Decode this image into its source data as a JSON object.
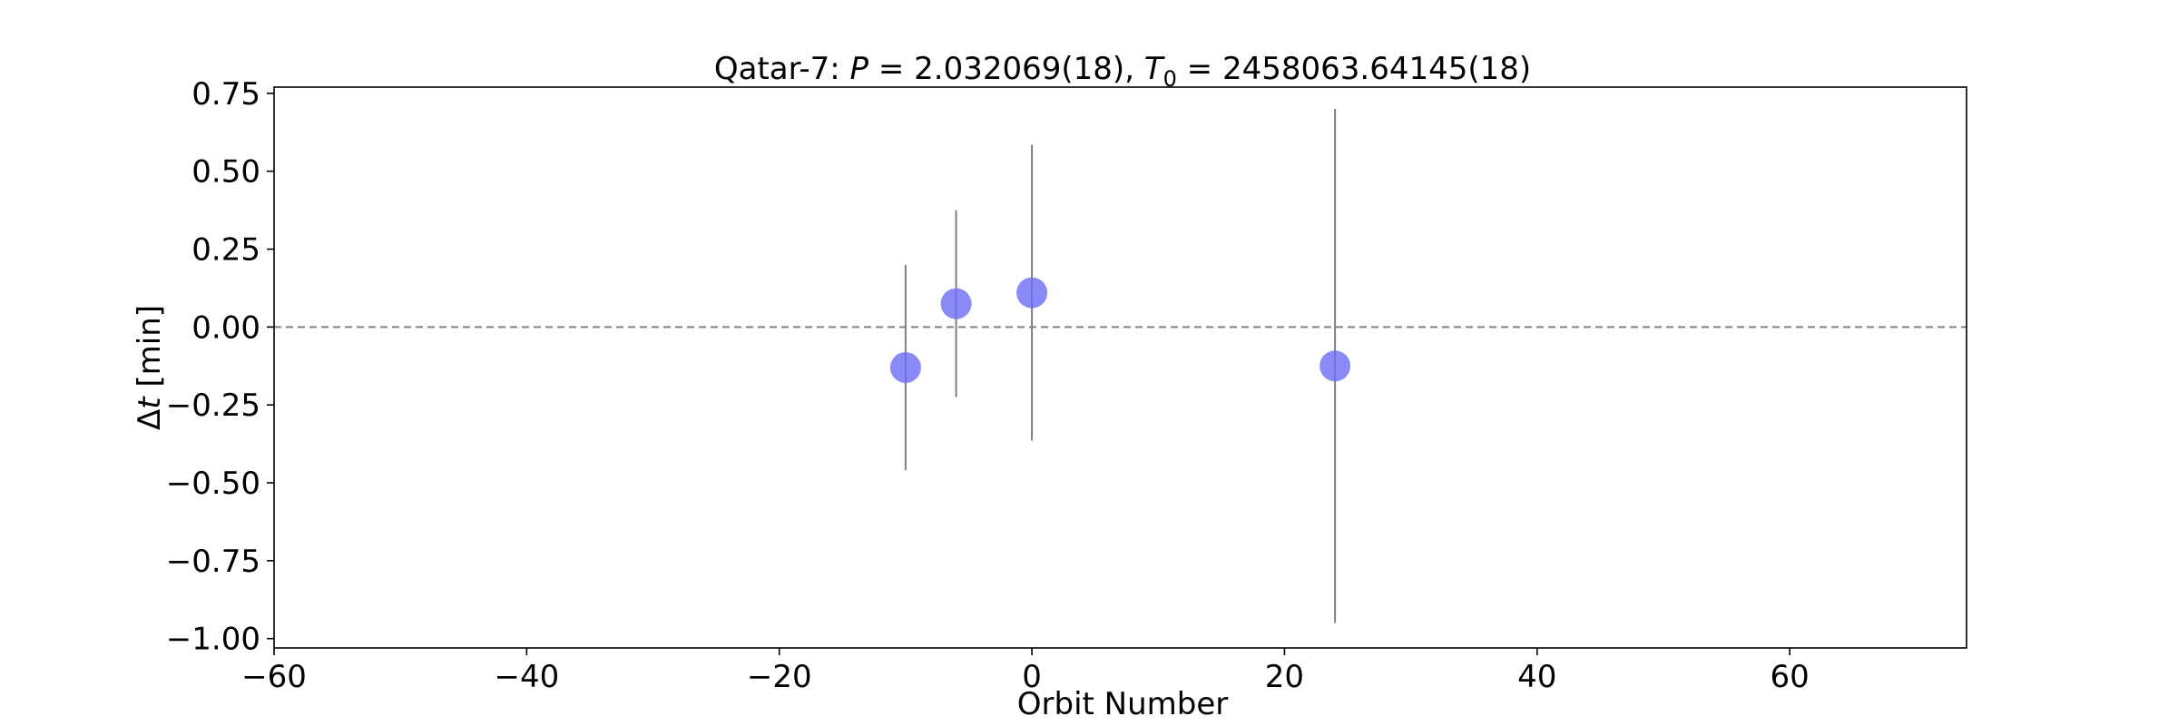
{
  "chart_data": {
    "type": "scatter",
    "title": {
      "prefix": "Qatar-7: ",
      "p_symbol": "P",
      "p_value": " = 2.032069(18), ",
      "t_symbol": "T",
      "t_subscript": "0",
      "t_value": " = 2458063.64145(18)"
    },
    "xlabel": "Orbit Number",
    "ylabel": {
      "symbol": "Δ",
      "var": "t",
      "unit": " [min]"
    },
    "xlim": [
      -60,
      74
    ],
    "ylim": [
      -1.03,
      0.77
    ],
    "xticks": [
      -60,
      -40,
      -20,
      0,
      20,
      40,
      60
    ],
    "xtick_labels": [
      "−60",
      "−40",
      "−20",
      "0",
      "20",
      "40",
      "60"
    ],
    "yticks": [
      0.75,
      0.5,
      0.25,
      0.0,
      -0.25,
      -0.5,
      -0.75,
      -1.0
    ],
    "ytick_labels": [
      "0.75",
      "0.50",
      "0.25",
      "0.00",
      "−0.25",
      "−0.50",
      "−0.75",
      "−1.00"
    ],
    "reference_line_y": 0,
    "points": [
      {
        "x": -10,
        "y": -0.13,
        "yerr": 0.33
      },
      {
        "x": -6,
        "y": 0.075,
        "yerr": 0.3
      },
      {
        "x": 0,
        "y": 0.11,
        "yerr": 0.475
      },
      {
        "x": 24,
        "y": -0.125,
        "yerr": 0.825
      }
    ],
    "colors": {
      "marker": "#6b6bf5",
      "errorbar": "#808080",
      "reference_line": "#808080",
      "axes": "#000000"
    },
    "grid": false,
    "legend": false
  }
}
